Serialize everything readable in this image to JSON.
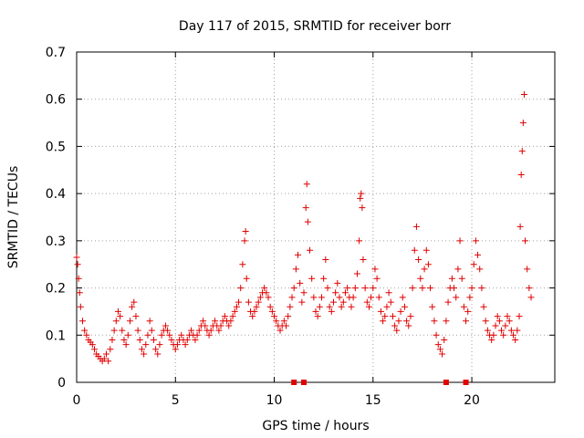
{
  "chart_data": {
    "type": "scatter",
    "title": "Day 117 of 2015, SRMTID for receiver borr",
    "xlabel": "GPS time / hours",
    "ylabel": "SRMTID / TECUs",
    "xlim": [
      0,
      24.2
    ],
    "ylim": [
      0,
      0.7
    ],
    "xticks": [
      "0",
      "5",
      "10",
      "15",
      "20"
    ],
    "yticks": [
      "0",
      "0.1",
      "0.2",
      "0.3",
      "0.4",
      "0.5",
      "0.6",
      "0.7"
    ],
    "grid": true,
    "marker": "+",
    "color": "#e00000",
    "series": [
      {
        "name": "SRMTID",
        "points": [
          [
            0.0,
            0.265
          ],
          [
            0.05,
            0.25
          ],
          [
            0.1,
            0.22
          ],
          [
            0.15,
            0.19
          ],
          [
            0.2,
            0.16
          ],
          [
            0.3,
            0.13
          ],
          [
            0.4,
            0.11
          ],
          [
            0.5,
            0.1
          ],
          [
            0.6,
            0.09
          ],
          [
            0.7,
            0.085
          ],
          [
            0.8,
            0.08
          ],
          [
            0.9,
            0.07
          ],
          [
            1.0,
            0.06
          ],
          [
            1.1,
            0.055
          ],
          [
            1.2,
            0.05
          ],
          [
            1.3,
            0.045
          ],
          [
            1.4,
            0.05
          ],
          [
            1.5,
            0.06
          ],
          [
            1.6,
            0.045
          ],
          [
            1.7,
            0.07
          ],
          [
            1.8,
            0.09
          ],
          [
            1.9,
            0.11
          ],
          [
            2.0,
            0.13
          ],
          [
            2.1,
            0.15
          ],
          [
            2.2,
            0.14
          ],
          [
            2.3,
            0.11
          ],
          [
            2.4,
            0.09
          ],
          [
            2.5,
            0.08
          ],
          [
            2.6,
            0.1
          ],
          [
            2.7,
            0.13
          ],
          [
            2.8,
            0.16
          ],
          [
            2.9,
            0.17
          ],
          [
            3.0,
            0.14
          ],
          [
            3.1,
            0.11
          ],
          [
            3.2,
            0.09
          ],
          [
            3.3,
            0.07
          ],
          [
            3.4,
            0.06
          ],
          [
            3.5,
            0.08
          ],
          [
            3.6,
            0.1
          ],
          [
            3.7,
            0.13
          ],
          [
            3.8,
            0.11
          ],
          [
            3.9,
            0.09
          ],
          [
            4.0,
            0.07
          ],
          [
            4.1,
            0.06
          ],
          [
            4.2,
            0.08
          ],
          [
            4.3,
            0.1
          ],
          [
            4.4,
            0.11
          ],
          [
            4.5,
            0.12
          ],
          [
            4.6,
            0.11
          ],
          [
            4.7,
            0.1
          ],
          [
            4.8,
            0.09
          ],
          [
            4.9,
            0.08
          ],
          [
            5.0,
            0.07
          ],
          [
            5.1,
            0.08
          ],
          [
            5.2,
            0.09
          ],
          [
            5.3,
            0.1
          ],
          [
            5.4,
            0.09
          ],
          [
            5.5,
            0.08
          ],
          [
            5.6,
            0.09
          ],
          [
            5.7,
            0.1
          ],
          [
            5.8,
            0.11
          ],
          [
            5.9,
            0.1
          ],
          [
            6.0,
            0.09
          ],
          [
            6.1,
            0.1
          ],
          [
            6.2,
            0.11
          ],
          [
            6.3,
            0.12
          ],
          [
            6.4,
            0.13
          ],
          [
            6.5,
            0.12
          ],
          [
            6.6,
            0.11
          ],
          [
            6.7,
            0.1
          ],
          [
            6.8,
            0.11
          ],
          [
            6.9,
            0.12
          ],
          [
            7.0,
            0.13
          ],
          [
            7.1,
            0.12
          ],
          [
            7.2,
            0.11
          ],
          [
            7.3,
            0.12
          ],
          [
            7.4,
            0.13
          ],
          [
            7.5,
            0.14
          ],
          [
            7.6,
            0.13
          ],
          [
            7.7,
            0.12
          ],
          [
            7.8,
            0.13
          ],
          [
            7.9,
            0.14
          ],
          [
            8.0,
            0.15
          ],
          [
            8.1,
            0.16
          ],
          [
            8.2,
            0.17
          ],
          [
            8.3,
            0.2
          ],
          [
            8.4,
            0.25
          ],
          [
            8.5,
            0.3
          ],
          [
            8.55,
            0.32
          ],
          [
            8.6,
            0.22
          ],
          [
            8.7,
            0.17
          ],
          [
            8.8,
            0.15
          ],
          [
            8.9,
            0.14
          ],
          [
            9.0,
            0.15
          ],
          [
            9.1,
            0.16
          ],
          [
            9.2,
            0.17
          ],
          [
            9.3,
            0.18
          ],
          [
            9.4,
            0.19
          ],
          [
            9.5,
            0.2
          ],
          [
            9.6,
            0.19
          ],
          [
            9.7,
            0.18
          ],
          [
            9.8,
            0.16
          ],
          [
            9.9,
            0.15
          ],
          [
            10.0,
            0.14
          ],
          [
            10.1,
            0.13
          ],
          [
            10.2,
            0.12
          ],
          [
            10.3,
            0.11
          ],
          [
            10.4,
            0.12
          ],
          [
            10.5,
            0.13
          ],
          [
            10.6,
            0.12
          ],
          [
            10.7,
            0.14
          ],
          [
            10.8,
            0.16
          ],
          [
            10.9,
            0.18
          ],
          [
            11.0,
            0.2
          ],
          [
            11.1,
            0.24
          ],
          [
            11.2,
            0.27
          ],
          [
            11.3,
            0.21
          ],
          [
            11.4,
            0.17
          ],
          [
            11.5,
            0.19
          ],
          [
            11.6,
            0.37
          ],
          [
            11.65,
            0.42
          ],
          [
            11.7,
            0.34
          ],
          [
            11.8,
            0.28
          ],
          [
            11.9,
            0.22
          ],
          [
            12.0,
            0.18
          ],
          [
            12.1,
            0.15
          ],
          [
            12.2,
            0.14
          ],
          [
            12.3,
            0.16
          ],
          [
            12.4,
            0.18
          ],
          [
            12.5,
            0.22
          ],
          [
            12.6,
            0.26
          ],
          [
            12.7,
            0.2
          ],
          [
            12.8,
            0.16
          ],
          [
            12.9,
            0.15
          ],
          [
            13.0,
            0.17
          ],
          [
            13.1,
            0.19
          ],
          [
            13.2,
            0.21
          ],
          [
            13.3,
            0.18
          ],
          [
            13.4,
            0.16
          ],
          [
            13.5,
            0.17
          ],
          [
            13.6,
            0.19
          ],
          [
            13.7,
            0.2
          ],
          [
            13.8,
            0.18
          ],
          [
            13.9,
            0.16
          ],
          [
            14.0,
            0.18
          ],
          [
            14.1,
            0.2
          ],
          [
            14.2,
            0.23
          ],
          [
            14.3,
            0.3
          ],
          [
            14.35,
            0.39
          ],
          [
            14.4,
            0.4
          ],
          [
            14.45,
            0.37
          ],
          [
            14.5,
            0.26
          ],
          [
            14.6,
            0.2
          ],
          [
            14.7,
            0.17
          ],
          [
            14.8,
            0.16
          ],
          [
            14.9,
            0.18
          ],
          [
            15.0,
            0.2
          ],
          [
            15.1,
            0.24
          ],
          [
            15.2,
            0.22
          ],
          [
            15.3,
            0.18
          ],
          [
            15.4,
            0.15
          ],
          [
            15.5,
            0.13
          ],
          [
            15.6,
            0.14
          ],
          [
            15.7,
            0.16
          ],
          [
            15.8,
            0.19
          ],
          [
            15.9,
            0.17
          ],
          [
            16.0,
            0.14
          ],
          [
            16.1,
            0.12
          ],
          [
            16.2,
            0.11
          ],
          [
            16.3,
            0.13
          ],
          [
            16.4,
            0.15
          ],
          [
            16.5,
            0.18
          ],
          [
            16.6,
            0.16
          ],
          [
            16.7,
            0.13
          ],
          [
            16.8,
            0.12
          ],
          [
            16.9,
            0.14
          ],
          [
            17.0,
            0.2
          ],
          [
            17.1,
            0.28
          ],
          [
            17.2,
            0.33
          ],
          [
            17.3,
            0.26
          ],
          [
            17.4,
            0.22
          ],
          [
            17.5,
            0.2
          ],
          [
            17.6,
            0.24
          ],
          [
            17.7,
            0.28
          ],
          [
            17.8,
            0.25
          ],
          [
            17.9,
            0.2
          ],
          [
            18.0,
            0.16
          ],
          [
            18.1,
            0.13
          ],
          [
            18.2,
            0.1
          ],
          [
            18.3,
            0.08
          ],
          [
            18.4,
            0.07
          ],
          [
            18.5,
            0.06
          ],
          [
            18.6,
            0.09
          ],
          [
            18.7,
            0.13
          ],
          [
            18.8,
            0.17
          ],
          [
            18.9,
            0.2
          ],
          [
            19.0,
            0.22
          ],
          [
            19.1,
            0.2
          ],
          [
            19.2,
            0.18
          ],
          [
            19.3,
            0.24
          ],
          [
            19.4,
            0.3
          ],
          [
            19.5,
            0.22
          ],
          [
            19.6,
            0.16
          ],
          [
            19.7,
            0.13
          ],
          [
            19.8,
            0.15
          ],
          [
            19.9,
            0.18
          ],
          [
            20.0,
            0.2
          ],
          [
            20.1,
            0.25
          ],
          [
            20.2,
            0.3
          ],
          [
            20.3,
            0.27
          ],
          [
            20.4,
            0.24
          ],
          [
            20.5,
            0.2
          ],
          [
            20.6,
            0.16
          ],
          [
            20.7,
            0.13
          ],
          [
            20.8,
            0.11
          ],
          [
            20.9,
            0.1
          ],
          [
            21.0,
            0.09
          ],
          [
            21.1,
            0.1
          ],
          [
            21.2,
            0.12
          ],
          [
            21.3,
            0.14
          ],
          [
            21.4,
            0.13
          ],
          [
            21.5,
            0.11
          ],
          [
            21.6,
            0.1
          ],
          [
            21.7,
            0.12
          ],
          [
            21.8,
            0.14
          ],
          [
            21.9,
            0.13
          ],
          [
            22.0,
            0.11
          ],
          [
            22.1,
            0.1
          ],
          [
            22.2,
            0.09
          ],
          [
            22.3,
            0.11
          ],
          [
            22.4,
            0.14
          ],
          [
            22.45,
            0.33
          ],
          [
            22.5,
            0.44
          ],
          [
            22.55,
            0.49
          ],
          [
            22.6,
            0.55
          ],
          [
            22.65,
            0.61
          ],
          [
            22.7,
            0.3
          ],
          [
            22.8,
            0.24
          ],
          [
            22.9,
            0.2
          ],
          [
            23.0,
            0.18
          ]
        ]
      }
    ],
    "flags": [
      11.0,
      11.5,
      18.7,
      19.7
    ]
  }
}
